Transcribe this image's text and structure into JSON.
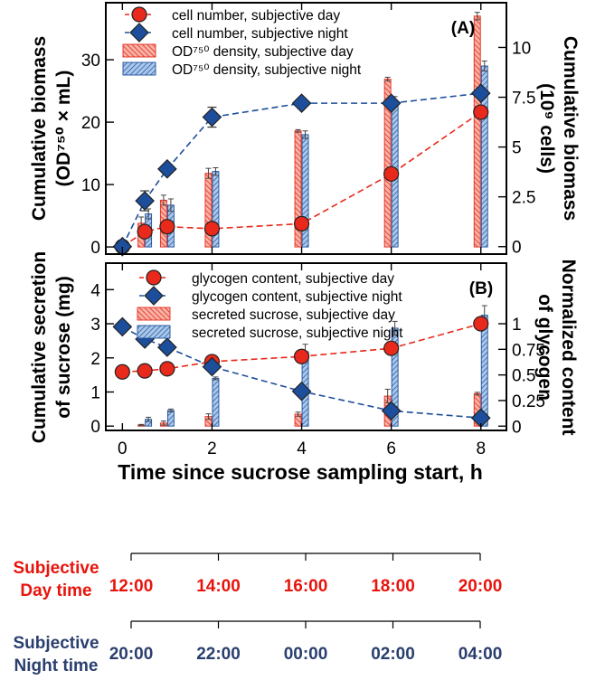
{
  "colors": {
    "day": "#e8291b",
    "day_marker": "#e8291b",
    "night": "#1d4e9b",
    "night_bar_fill": "#a9c8ea",
    "day_bar_fill": "#f6b3a6",
    "day_text": "#e8140c",
    "night_text": "#2a3f6e",
    "axis": "#000000"
  },
  "chart_data": [
    {
      "panel_label": "(A)",
      "type": "bar+line",
      "ylabel_left_line1": "Cumulative biomass",
      "ylabel_left_line2": "(OD⁷⁵⁰ × mL)",
      "ylabel_right_line1": "Cumulative biomass",
      "ylabel_right_line2": "(10⁹ cells)",
      "ylim_left": [
        -1,
        39
      ],
      "yticks_left": [
        0,
        10,
        20,
        30
      ],
      "ylim_right": [
        -0.33,
        12.2
      ],
      "yticks_right": [
        0,
        2.5,
        5,
        7.5,
        10
      ],
      "ytick_right_labels": [
        "0",
        "2.5",
        "5",
        "7.5",
        "10"
      ],
      "legend": [
        {
          "label": "cell number, subjective day",
          "kind": "line-circle",
          "series": "day"
        },
        {
          "label": "cell number, subjective night",
          "kind": "line-diamond",
          "series": "night"
        },
        {
          "label": "OD⁷⁵⁰ density, subjective day",
          "kind": "bar",
          "series": "day"
        },
        {
          "label": "OD⁷⁵⁰ density, subjective night",
          "kind": "bar",
          "series": "night"
        }
      ],
      "bars_day": {
        "x": [
          0.5,
          1,
          2,
          4,
          6,
          8
        ],
        "values": [
          3.8,
          7.5,
          11.8,
          18.6,
          26.9,
          37.0
        ],
        "errors": [
          1.0,
          0.8,
          0.8,
          0.2,
          0.3,
          0.6
        ]
      },
      "bars_night": {
        "x": [
          0.5,
          1,
          2,
          4,
          6,
          8
        ],
        "values": [
          5.3,
          6.7,
          12.1,
          18.0,
          23.3,
          29.0
        ],
        "errors": [
          0.8,
          1.0,
          0.6,
          0.6,
          0.8,
          0.8
        ]
      },
      "line_day": {
        "x": [
          0,
          0.5,
          1,
          2,
          4,
          6,
          8
        ],
        "values": [
          0,
          0.75,
          1.0,
          0.9,
          1.15,
          3.65,
          6.75
        ],
        "errors": [
          0.25,
          0.2,
          0.2,
          0.15,
          0.15,
          0.2,
          0.3
        ]
      },
      "line_night": {
        "x": [
          0,
          0.5,
          1,
          2,
          4,
          6,
          8
        ],
        "values": [
          0,
          2.3,
          3.9,
          6.5,
          7.2,
          7.2,
          7.7
        ],
        "errors": [
          0.15,
          0.5,
          0.2,
          0.5,
          0.2,
          0.2,
          0.2
        ]
      }
    },
    {
      "panel_label": "(B)",
      "type": "bar+line",
      "ylabel_left_line1": "Cumulative secretion",
      "ylabel_left_line2": "of sucrose (mg)",
      "ylabel_right_line1": "Normalized content",
      "ylabel_right_line2": "of glycogen",
      "ylim_left": [
        -0.1,
        4.75
      ],
      "yticks_left": [
        0,
        1,
        2,
        3,
        4
      ],
      "ylim_right": [
        -0.033,
        1.583
      ],
      "yticks_right": [
        0,
        0.25,
        0.5,
        0.75,
        1
      ],
      "ytick_right_labels": [
        "0",
        "0.25",
        "0.5",
        "0.75",
        "1"
      ],
      "legend": [
        {
          "label": "glycogen content, subjective day",
          "kind": "line-circle",
          "series": "day"
        },
        {
          "label": "glycogen content, subjective night",
          "kind": "line-diamond",
          "series": "night"
        },
        {
          "label": "secreted sucrose, subjective day",
          "kind": "bar",
          "series": "day"
        },
        {
          "label": "secreted sucrose, subjective night",
          "kind": "bar",
          "series": "night"
        }
      ],
      "bars_day": {
        "x": [
          0.5,
          1,
          2,
          4,
          6,
          8
        ],
        "values": [
          0.03,
          0.09,
          0.28,
          0.35,
          0.88,
          0.95
        ],
        "errors": [
          0.02,
          0.06,
          0.08,
          0.06,
          0.2,
          0.04
        ]
      },
      "bars_night": {
        "x": [
          0.5,
          1,
          2,
          4,
          6,
          8
        ],
        "values": [
          0.2,
          0.46,
          1.4,
          2.18,
          2.87,
          3.25
        ],
        "errors": [
          0.06,
          0.04,
          0.04,
          0.22,
          0.2,
          0.28
        ]
      },
      "line_day": {
        "x": [
          0,
          0.5,
          1,
          2,
          4,
          6,
          8
        ],
        "values": [
          0.53,
          0.54,
          0.56,
          0.63,
          0.68,
          0.76,
          1.0
        ],
        "errors": [
          0.04,
          0.04,
          0.03,
          0.04,
          0.05,
          0.05,
          0.05
        ]
      },
      "line_night": {
        "x": [
          0,
          0.5,
          1,
          2,
          4,
          6,
          8
        ],
        "values": [
          0.97,
          0.85,
          0.77,
          0.58,
          0.34,
          0.15,
          0.08
        ],
        "errors": [
          0.03,
          0.04,
          0.05,
          0.04,
          0.03,
          0.03,
          0.02
        ]
      }
    }
  ],
  "xaxis": {
    "label": "Time since sucrose sampling start, h",
    "ticks": [
      0,
      2,
      4,
      6,
      8
    ],
    "xlim": [
      -0.35,
      8.55
    ]
  },
  "time_scales": {
    "day_label_line1": "Subjective",
    "day_label_line2": "Day time",
    "day_ticks": [
      "12:00",
      "14:00",
      "16:00",
      "18:00",
      "20:00"
    ],
    "night_label_line1": "Subjective",
    "night_label_line2": "Night time",
    "night_ticks": [
      "20:00",
      "22:00",
      "00:00",
      "02:00",
      "04:00"
    ]
  }
}
